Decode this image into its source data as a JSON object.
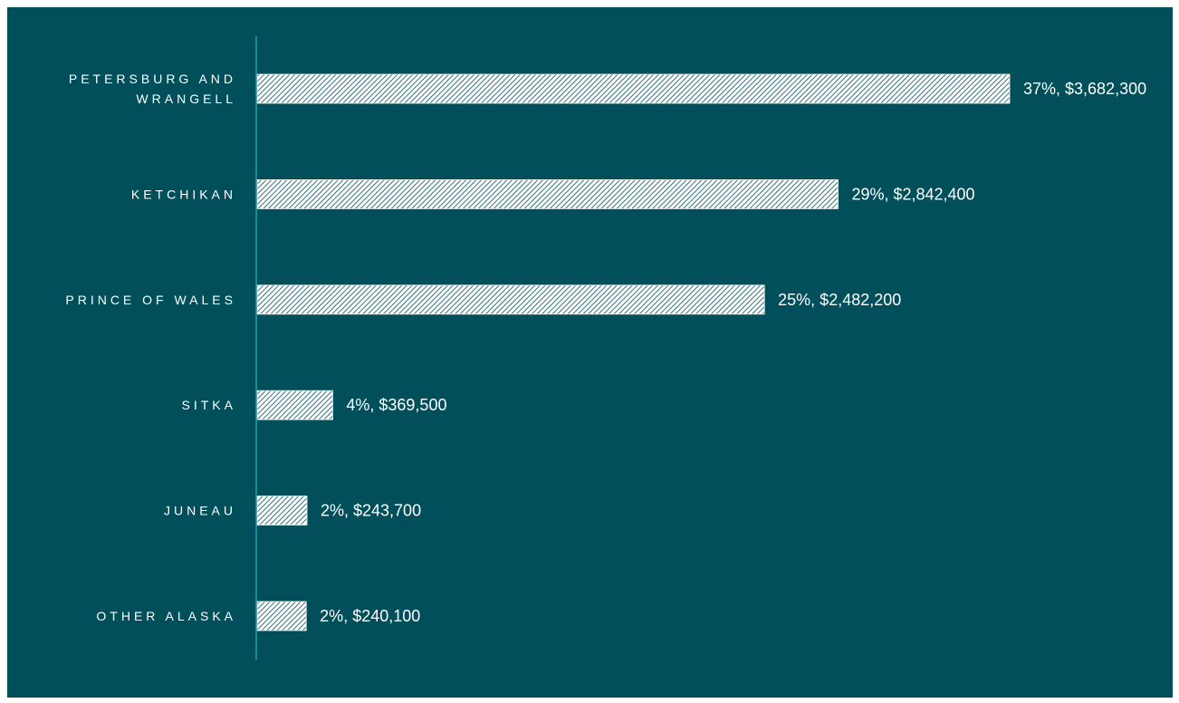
{
  "chart_data": {
    "type": "bar",
    "orientation": "horizontal",
    "categories": [
      [
        "PETERSBURG AND",
        "WRANGELL"
      ],
      [
        "KETCHIKAN"
      ],
      [
        "PRINCE OF WALES"
      ],
      [
        "SITKA"
      ],
      [
        "JUNEAU"
      ],
      [
        "OTHER ALASKA"
      ]
    ],
    "values": [
      3682300,
      2842400,
      2482200,
      369500,
      243700,
      240100
    ],
    "percent": [
      37,
      29,
      25,
      4,
      2,
      2
    ],
    "data_labels": [
      "37%, $3,682,300",
      "29%, $2,842,400",
      "25%, $2,482,200",
      "4%, $369,500",
      "2%, $243,700",
      "2%, $240,100"
    ],
    "title": "",
    "xlabel": "",
    "ylabel": "",
    "xlim": [
      0,
      3682300
    ],
    "grid": false,
    "legend": "none",
    "bar_fill": "diagonal-hatch",
    "colors": {
      "background": "#004f5a",
      "bar": "#ffffff",
      "axis": "#1aa3b5",
      "text": "#ffffff"
    }
  }
}
